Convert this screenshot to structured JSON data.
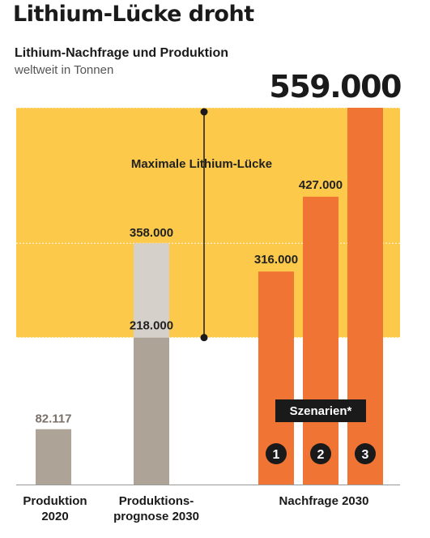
{
  "headline": "Lithium-Lücke droht",
  "subtitle": "Lithium-Nachfrage und Produktion",
  "unit": "weltweit in Tonnen",
  "big_value_label": "559.000",
  "colors": {
    "gap_band": "#fcc94a",
    "production": "#aea397",
    "forecast_low": "#aea397",
    "forecast_high": "#d6d0cb",
    "demand": "#f07535",
    "marker": "#1a1a1a",
    "label_dark": "#222222",
    "label_grey": "#7a7068"
  },
  "chart_data": {
    "type": "bar",
    "title": "Lithium-Lücke droht",
    "subtitle": "Lithium-Nachfrage und Produktion",
    "ylabel": "weltweit in Tonnen",
    "ylim": [
      0,
      559000
    ],
    "grid": false,
    "groups": [
      {
        "label": "Produktion\n2020"
      },
      {
        "label": "Produktions-\nprognose 2030"
      },
      {
        "label": "Nachfrage 2030"
      }
    ],
    "bars": [
      {
        "group": 0,
        "value": 82117,
        "label": "82.117"
      },
      {
        "group": 1,
        "low": 218000,
        "high": 358000,
        "low_label": "218.000",
        "high_label": "358.000"
      },
      {
        "group": 2,
        "scenario": "1",
        "value": 316000,
        "label": "316.000"
      },
      {
        "group": 2,
        "scenario": "2",
        "value": 427000,
        "label": "427.000"
      },
      {
        "group": 2,
        "scenario": "3",
        "value": 559000,
        "label": "559.000"
      }
    ],
    "gap_band": {
      "from": 218000,
      "to": 559000,
      "label": "Maximale Lithium-Lücke"
    },
    "scenario_label": "Szenarien*"
  }
}
